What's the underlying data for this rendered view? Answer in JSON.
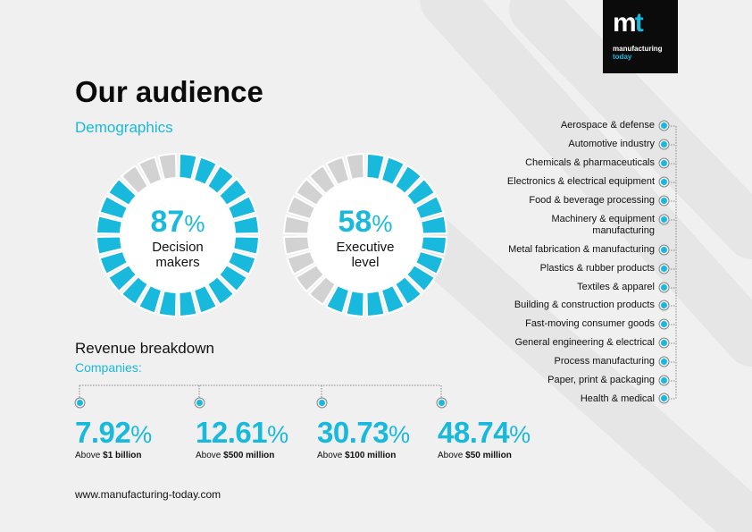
{
  "logo": {
    "mark_m": "m",
    "mark_t": "t",
    "line1": "manufacturing",
    "line2": "today"
  },
  "title": "Our audience",
  "demographics": {
    "heading": "Demographics",
    "donuts": [
      {
        "value": "87",
        "percent": 87,
        "pct_sign": "%",
        "label_line1": "Decision",
        "label_line2": "makers"
      },
      {
        "value": "58",
        "percent": 58,
        "pct_sign": "%",
        "label_line1": "Executive",
        "label_line2": "level"
      }
    ]
  },
  "revenue": {
    "heading": "Revenue breakdown",
    "subheading": "Companies:",
    "items": [
      {
        "value": "7.92",
        "pct": "%",
        "prefix": "Above ",
        "amount": "$1 billion"
      },
      {
        "value": "12.61",
        "pct": "%",
        "prefix": "Above ",
        "amount": "$500 million"
      },
      {
        "value": "30.73",
        "pct": "%",
        "prefix": "Above ",
        "amount": "$100 million"
      },
      {
        "value": "48.74",
        "pct": "%",
        "prefix": "Above ",
        "amount": "$50 million"
      }
    ]
  },
  "industries": [
    "Aerospace & defense",
    "Automotive industry",
    "Chemicals & pharmaceuticals",
    "Electronics & electrical equipment",
    "Food & beverage processing",
    "Machinery & equipment manufacturing",
    "Metal fabrication & manufacturing",
    "Plastics & rubber products",
    "Textiles & apparel",
    "Building & construction products",
    "Fast-moving consumer goods",
    "General engineering & electrical",
    "Process manufacturing",
    "Paper, print & packaging",
    "Health & medical"
  ],
  "footer": {
    "url": "www.manufacturing-today.com"
  },
  "colors": {
    "accent": "#18b9dc",
    "segment_off": "#d2d2d2",
    "logo_bg": "#0b0b0b",
    "background": "#f0f0f0"
  }
}
